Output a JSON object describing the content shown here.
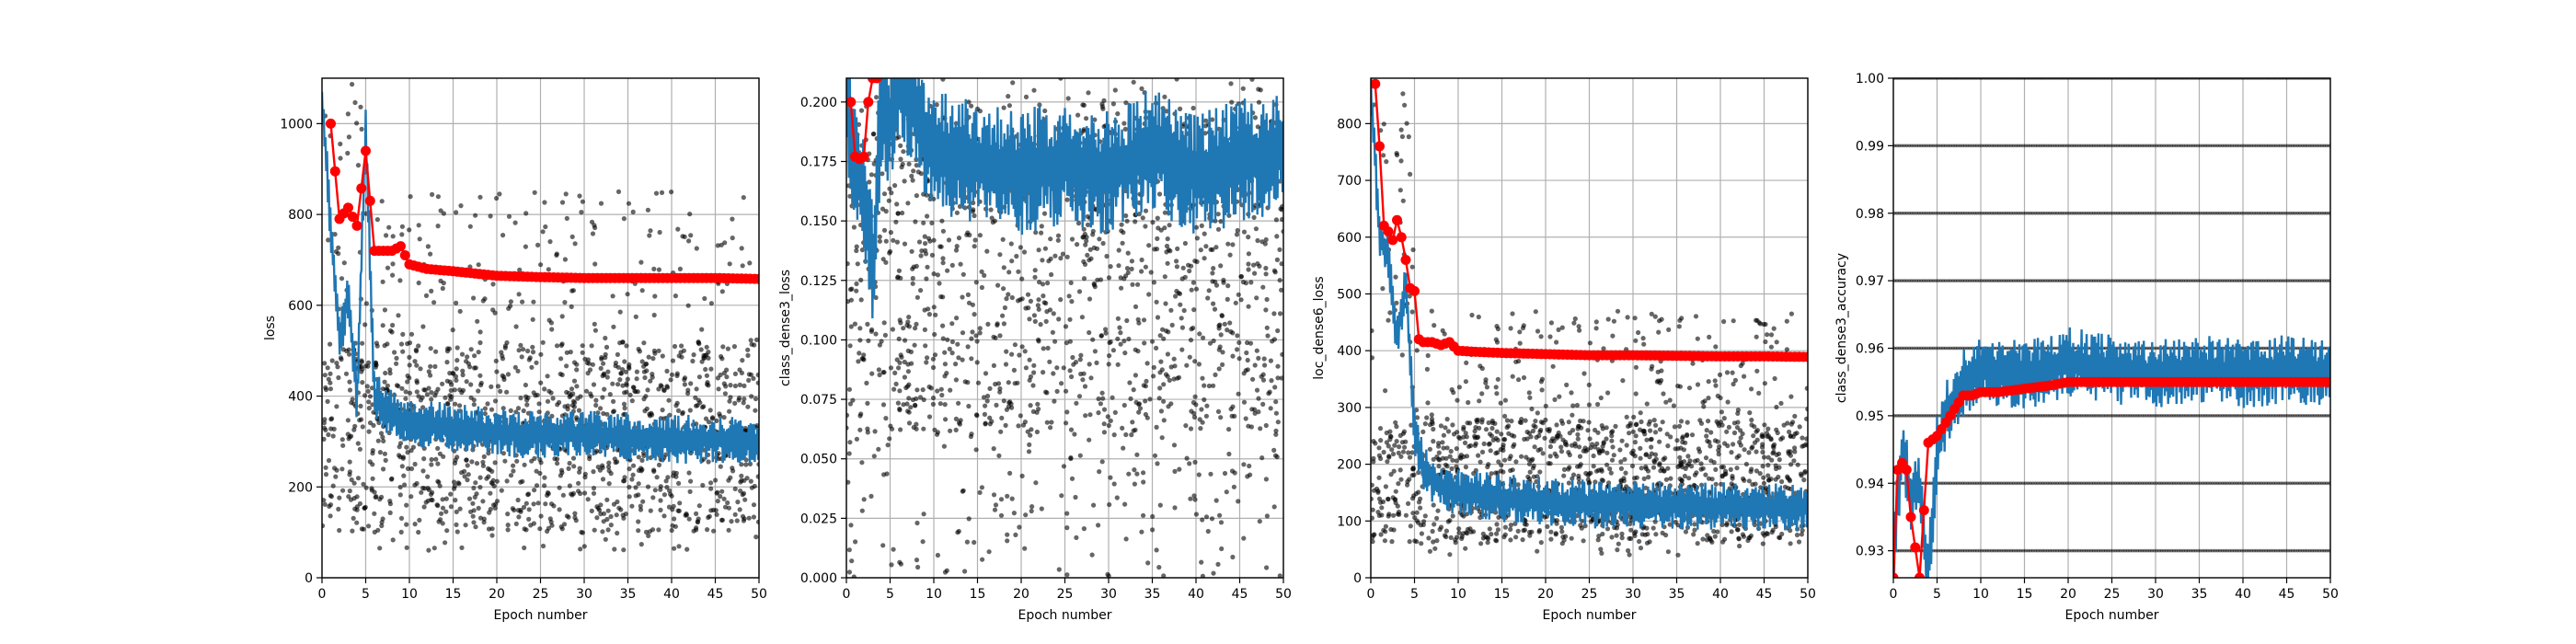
{
  "chart_data": [
    {
      "type": "scatter",
      "xlabel": "Epoch number",
      "ylabel": "loss",
      "xlim": [
        0,
        50
      ],
      "ylim": [
        0,
        1100
      ],
      "xticks": [
        "0",
        "5",
        "10",
        "15",
        "20",
        "25",
        "30",
        "35",
        "40",
        "45",
        "50"
      ],
      "yticks": [
        "0",
        "200",
        "400",
        "600",
        "800",
        "1000"
      ],
      "grid": true,
      "series": [
        {
          "kind": "points",
          "color": "#000000",
          "band": [
            60,
            850
          ],
          "core": [
            100,
            520
          ]
        },
        {
          "kind": "line",
          "color": "#1f77b4",
          "x": [
            0,
            1,
            2,
            3,
            4,
            5,
            6,
            8,
            10,
            15,
            20,
            25,
            30,
            35,
            40,
            45,
            50
          ],
          "y": [
            1050,
            780,
            520,
            620,
            390,
            980,
            400,
            360,
            340,
            330,
            320,
            315,
            315,
            310,
            305,
            305,
            300
          ]
        },
        {
          "kind": "line-markers",
          "color": "#ff0000",
          "x": [
            1,
            2,
            3,
            4,
            5,
            6,
            8,
            9,
            10,
            12,
            15,
            20,
            25,
            30,
            35,
            40,
            45,
            50
          ],
          "y": [
            1000,
            790,
            815,
            775,
            940,
            720,
            720,
            730,
            690,
            680,
            675,
            665,
            662,
            660,
            660,
            660,
            660,
            658
          ]
        }
      ]
    },
    {
      "type": "scatter",
      "xlabel": "Epoch number",
      "ylabel": "class_dense3_loss",
      "xlim": [
        0,
        50
      ],
      "ylim": [
        0,
        0.21
      ],
      "xticks": [
        "0",
        "5",
        "10",
        "15",
        "20",
        "25",
        "30",
        "35",
        "40",
        "45",
        "50"
      ],
      "yticks": [
        "0.000",
        "0.025",
        "0.050",
        "0.075",
        "0.100",
        "0.125",
        "0.150",
        "0.175",
        "0.200"
      ],
      "grid": true,
      "series": [
        {
          "kind": "points",
          "color": "#000000",
          "band": [
            0.0,
            0.21
          ],
          "core": [
            0.06,
            0.2
          ]
        },
        {
          "kind": "line",
          "color": "#1f77b4",
          "x": [
            0,
            1,
            2,
            3,
            4,
            5,
            6,
            10,
            15,
            20,
            25,
            30,
            35,
            40,
            45,
            50
          ],
          "y": [
            0.2,
            0.175,
            0.16,
            0.13,
            0.2,
            0.19,
            0.21,
            0.18,
            0.175,
            0.17,
            0.175,
            0.17,
            0.18,
            0.17,
            0.175,
            0.18
          ]
        },
        {
          "kind": "line-markers",
          "color": "#ff0000",
          "x": [
            0.5,
            1,
            1.5,
            2,
            2.5,
            3,
            3.5
          ],
          "y": [
            0.2,
            0.177,
            0.176,
            0.177,
            0.2,
            0.21,
            0.21
          ]
        }
      ]
    },
    {
      "type": "scatter",
      "xlabel": "Epoch number",
      "ylabel": "loc_dense6_loss",
      "xlim": [
        0,
        50
      ],
      "ylim": [
        0,
        880
      ],
      "xticks": [
        "0",
        "5",
        "10",
        "15",
        "20",
        "25",
        "30",
        "35",
        "40",
        "45",
        "50"
      ],
      "yticks": [
        "0",
        "100",
        "200",
        "300",
        "400",
        "500",
        "600",
        "700",
        "800"
      ],
      "grid": true,
      "series": [
        {
          "kind": "points",
          "color": "#000000",
          "band": [
            40,
            470
          ],
          "core": [
            60,
            280
          ]
        },
        {
          "kind": "line",
          "color": "#1f77b4",
          "x": [
            0,
            1,
            2,
            3,
            4,
            5,
            6,
            8,
            10,
            15,
            20,
            25,
            30,
            35,
            40,
            45,
            50
          ],
          "y": [
            870,
            600,
            560,
            420,
            520,
            260,
            190,
            160,
            150,
            140,
            135,
            130,
            130,
            128,
            126,
            125,
            125
          ]
        },
        {
          "kind": "line-markers",
          "color": "#ff0000",
          "x": [
            0.5,
            1,
            1.5,
            2,
            2.5,
            3,
            3.5,
            4,
            4.5,
            5,
            5.5,
            6,
            7,
            8,
            9,
            10,
            12,
            15,
            20,
            25,
            30,
            35,
            40,
            45,
            50
          ],
          "y": [
            870,
            760,
            620,
            610,
            595,
            630,
            600,
            560,
            510,
            505,
            420,
            415,
            415,
            410,
            415,
            400,
            398,
            396,
            394,
            392,
            392,
            391,
            390,
            390,
            389
          ]
        }
      ]
    },
    {
      "type": "scatter",
      "xlabel": "Epoch number",
      "ylabel": "class_dense3_accuracy",
      "xlim": [
        0,
        50
      ],
      "ylim": [
        0.926,
        1.0
      ],
      "xticks": [
        "0",
        "5",
        "10",
        "15",
        "20",
        "25",
        "30",
        "35",
        "40",
        "45",
        "50"
      ],
      "yticks": [
        "0.93",
        "0.94",
        "0.95",
        "0.96",
        "0.97",
        "0.98",
        "0.99",
        "1.00"
      ],
      "grid": true,
      "series": [
        {
          "kind": "discrete-points",
          "color": "#000000",
          "levels": [
            0.93,
            0.94,
            0.95,
            0.96,
            0.97,
            0.98,
            0.99,
            1.0
          ]
        },
        {
          "kind": "line",
          "color": "#1f77b4",
          "x": [
            0,
            1,
            2,
            3,
            4,
            5,
            6,
            8,
            10,
            15,
            20,
            25,
            30,
            35,
            40,
            45,
            50
          ],
          "y": [
            0.93,
            0.945,
            0.938,
            0.94,
            0.926,
            0.945,
            0.95,
            0.955,
            0.957,
            0.956,
            0.958,
            0.957,
            0.956,
            0.957,
            0.956,
            0.957,
            0.956
          ]
        },
        {
          "kind": "line-markers",
          "color": "#ff0000",
          "x": [
            0,
            0.5,
            1,
            1.5,
            2,
            3,
            4,
            5,
            6,
            7,
            8,
            9,
            10,
            12,
            15,
            18,
            20,
            25,
            30,
            35,
            40,
            45,
            50
          ],
          "y": [
            0.926,
            0.942,
            0.943,
            0.942,
            0.935,
            0.926,
            0.946,
            0.947,
            0.949,
            0.951,
            0.953,
            0.953,
            0.9535,
            0.9535,
            0.954,
            0.9545,
            0.955,
            0.955,
            0.955,
            0.955,
            0.955,
            0.955,
            0.955
          ]
        }
      ]
    }
  ]
}
